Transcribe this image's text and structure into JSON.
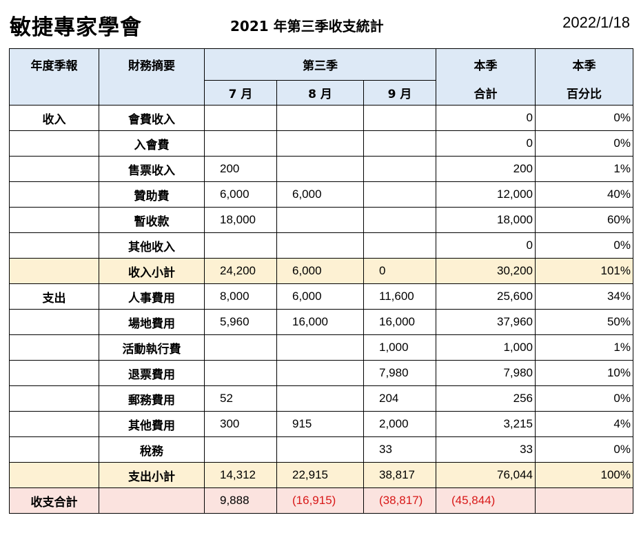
{
  "header": {
    "org_name": "敏捷專家學會",
    "subtitle": "2021  年第三季收支統計",
    "date": "2022/1/18"
  },
  "table": {
    "col_headers": {
      "category": "年度季報",
      "item": "財務摘要",
      "quarter": "第三季",
      "m7": "7 月",
      "m8": "8 月",
      "m9": "9 月",
      "total_top": "本季",
      "total_bottom": "合計",
      "pct_top": "本季",
      "pct_bottom": "百分比"
    },
    "rows": [
      {
        "category": "收入",
        "item": "會費收入",
        "m7": "",
        "m8": "",
        "m9": "",
        "total": "0",
        "pct": "0%"
      },
      {
        "category": "",
        "item": "入會費",
        "m7": "",
        "m8": "",
        "m9": "",
        "total": "0",
        "pct": "0%"
      },
      {
        "category": "",
        "item": "售票收入",
        "m7": "200",
        "m8": "",
        "m9": "",
        "total": "200",
        "pct": "1%"
      },
      {
        "category": "",
        "item": "贊助費",
        "m7": "6,000",
        "m8": "6,000",
        "m9": "",
        "total": "12,000",
        "pct": "40%"
      },
      {
        "category": "",
        "item": "暫收款",
        "m7": "18,000",
        "m8": "",
        "m9": "",
        "total": "18,000",
        "pct": "60%"
      },
      {
        "category": "",
        "item": "其他收入",
        "m7": "",
        "m8": "",
        "m9": "",
        "total": "0",
        "pct": "0%"
      },
      {
        "category": "",
        "item": "收入小計",
        "m7": "24,200",
        "m8": "6,000",
        "m9": "0",
        "total": "30,200",
        "pct": "101%",
        "kind": "subtotal"
      },
      {
        "category": "支出",
        "item": "人事費用",
        "m7": "8,000",
        "m8": "6,000",
        "m9": "11,600",
        "total": "25,600",
        "pct": "34%"
      },
      {
        "category": "",
        "item": "場地費用",
        "m7": "5,960",
        "m8": "16,000",
        "m9": "16,000",
        "total": "37,960",
        "pct": "50%"
      },
      {
        "category": "",
        "item": "活動執行費",
        "m7": "",
        "m8": "",
        "m9": "1,000",
        "total": "1,000",
        "pct": "1%"
      },
      {
        "category": "",
        "item": "退票費用",
        "m7": "",
        "m8": "",
        "m9": "7,980",
        "total": "7,980",
        "pct": "10%"
      },
      {
        "category": "",
        "item": "郵務費用",
        "m7": "52",
        "m8": "",
        "m9": "204",
        "total": "256",
        "pct": "0%"
      },
      {
        "category": "",
        "item": "其他費用",
        "m7": "300",
        "m8": "915",
        "m9": "2,000",
        "total": "3,215",
        "pct": "4%"
      },
      {
        "category": "",
        "item": "稅務",
        "m7": "",
        "m8": "",
        "m9": "33",
        "total": "33",
        "pct": "0%"
      },
      {
        "category": "",
        "item": "支出小計",
        "m7": "14,312",
        "m8": "22,915",
        "m9": "38,817",
        "total": "76,044",
        "pct": "100%",
        "kind": "subtotal"
      }
    ],
    "grand_total": {
      "label": "收支合計",
      "m7": "9,888",
      "m8": "(16,915)",
      "m9": "(38,817)",
      "total": "(45,844)"
    }
  },
  "colors": {
    "header_bg": "#dde9f6",
    "subtotal_bg": "#fdf1d3",
    "grand_total_bg": "#fbe3df",
    "negative_text": "#d81818"
  }
}
